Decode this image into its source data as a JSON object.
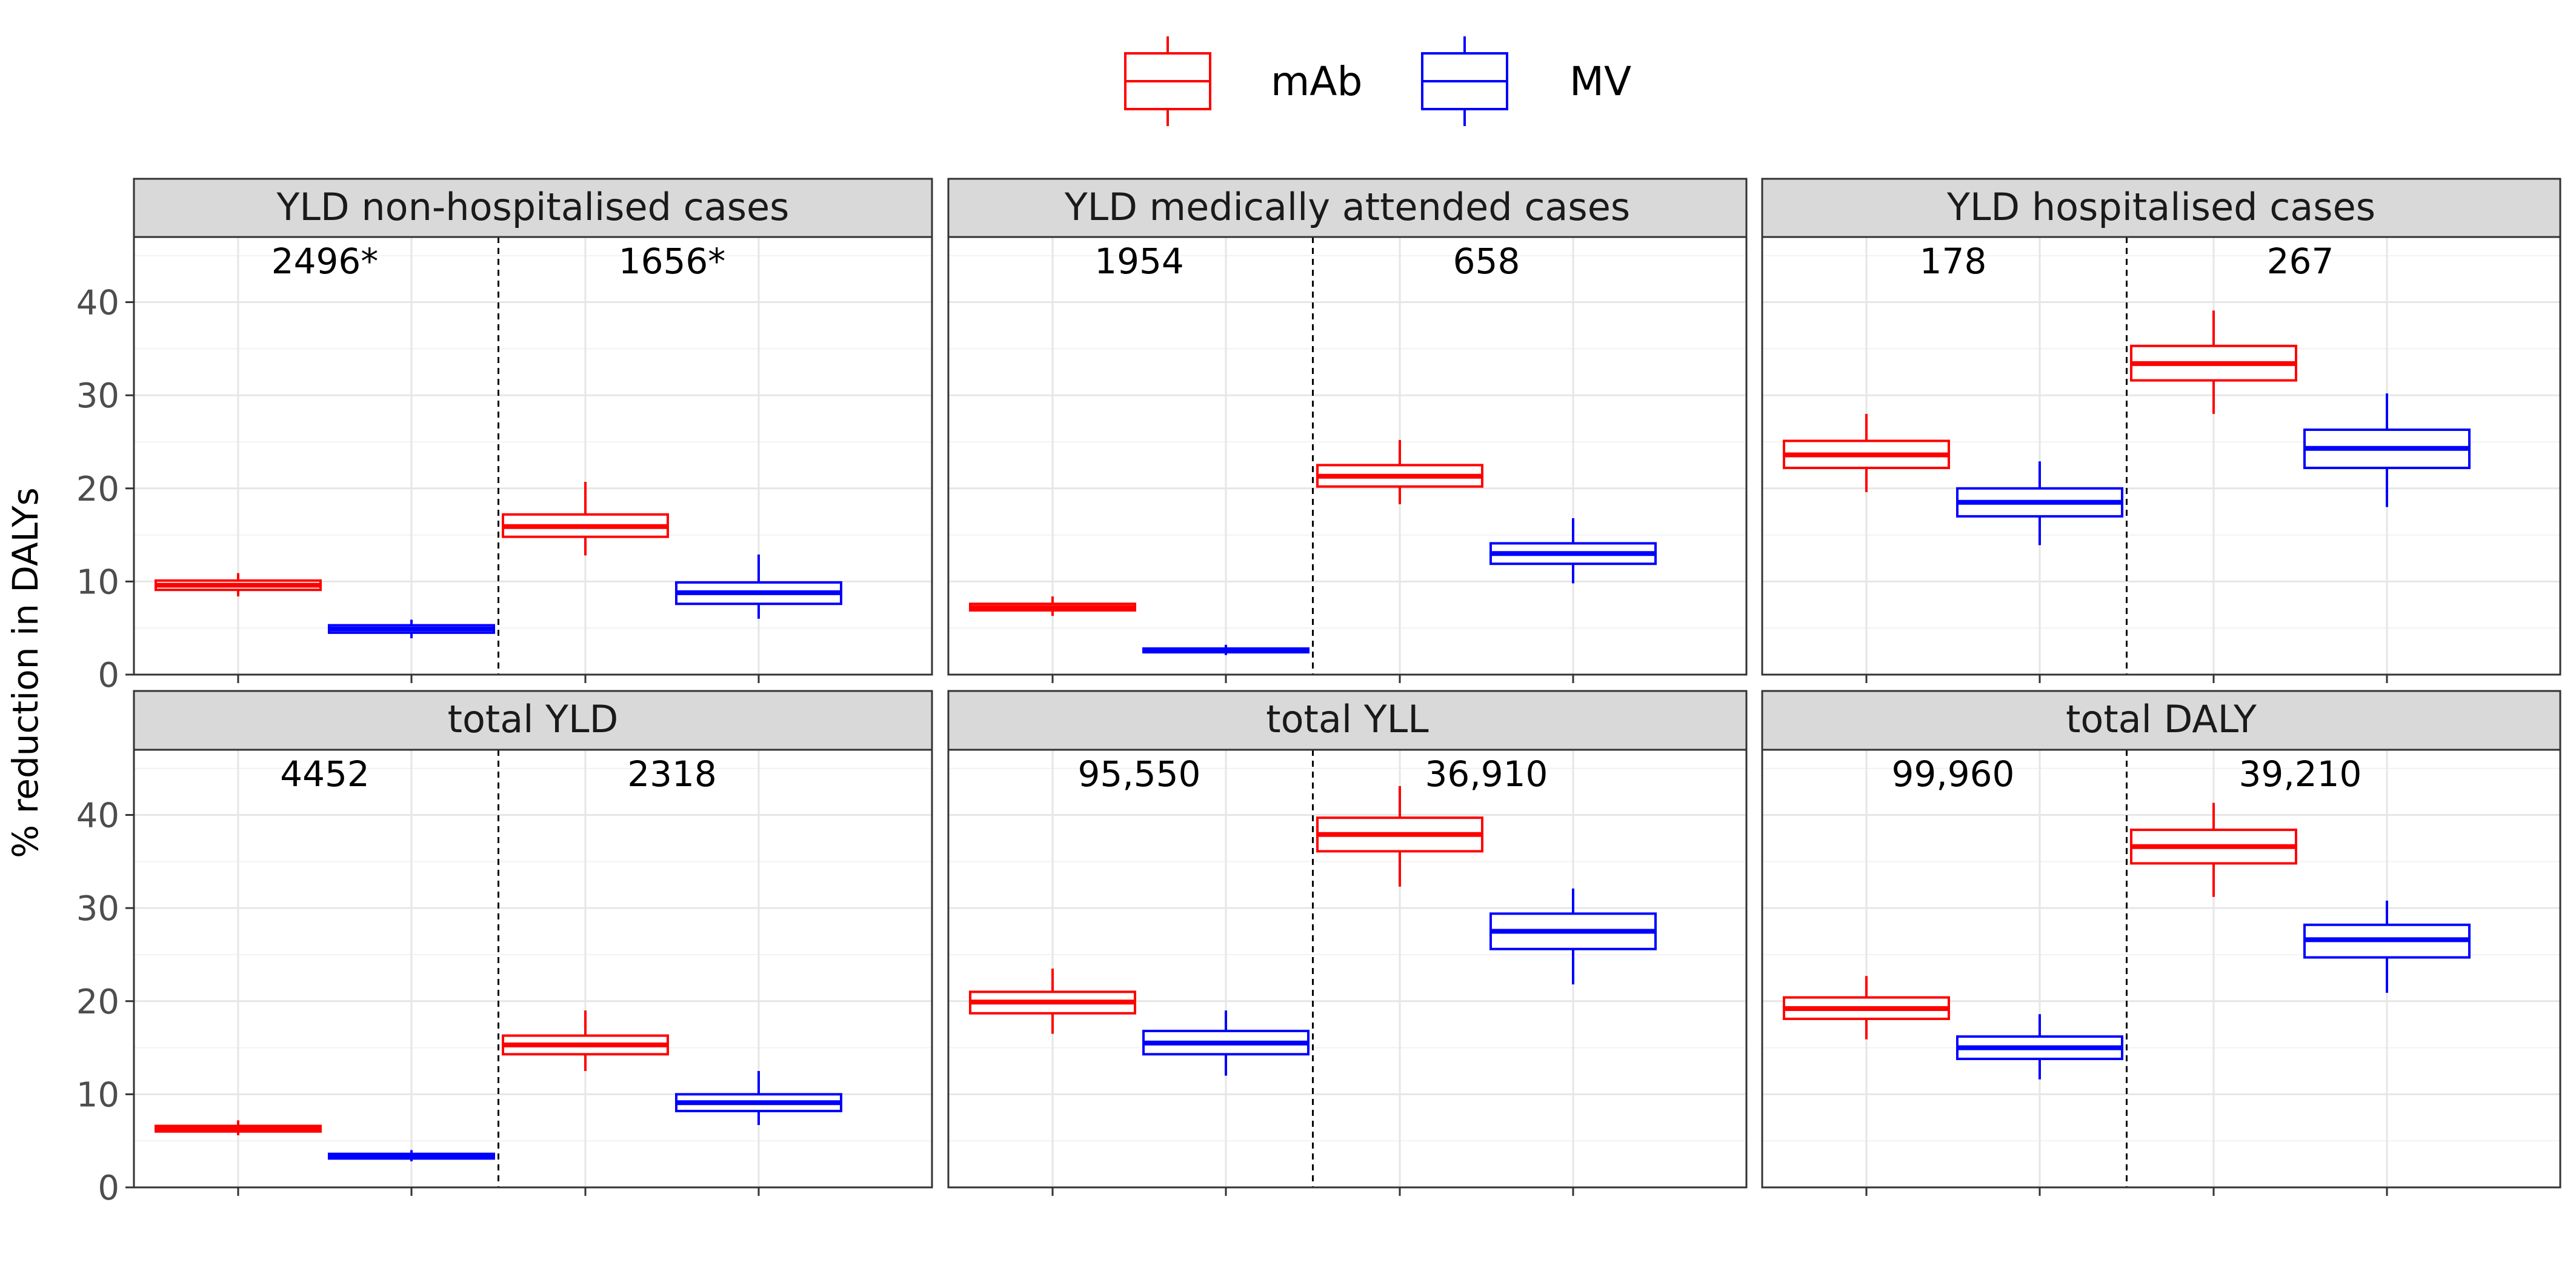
{
  "chart_data": {
    "type": "boxplot",
    "ylabel": "% reduction in DALYs",
    "ylim": [
      0,
      47
    ],
    "y_ticks": [
      0,
      10,
      20,
      30,
      40
    ],
    "grid": true,
    "legend": {
      "position": "top",
      "entries": [
        {
          "name": "mAb",
          "color": "#ff0000"
        },
        {
          "name": "MV",
          "color": "#0000ff"
        }
      ]
    },
    "panels": [
      {
        "title": "YLD non-hospitalised cases",
        "annotations": [
          "2496*",
          "1656*"
        ],
        "boxes": [
          {
            "series": "mAb",
            "group": 1,
            "min": 8.4,
            "q1": 9.1,
            "median": 9.6,
            "q3": 10.1,
            "max": 10.9
          },
          {
            "series": "MV",
            "group": 1,
            "min": 3.9,
            "q1": 4.5,
            "median": 4.9,
            "q3": 5.3,
            "max": 5.9
          },
          {
            "series": "mAb",
            "group": 2,
            "min": 12.8,
            "q1": 14.8,
            "median": 15.9,
            "q3": 17.2,
            "max": 20.7
          },
          {
            "series": "MV",
            "group": 2,
            "min": 6.0,
            "q1": 7.6,
            "median": 8.8,
            "q3": 9.9,
            "max": 12.9
          }
        ]
      },
      {
        "title": "YLD medically attended cases",
        "annotations": [
          "1954",
          "658"
        ],
        "boxes": [
          {
            "series": "mAb",
            "group": 1,
            "min": 6.3,
            "q1": 6.9,
            "median": 7.2,
            "q3": 7.6,
            "max": 8.4
          },
          {
            "series": "MV",
            "group": 1,
            "min": 2.1,
            "q1": 2.4,
            "median": 2.6,
            "q3": 2.8,
            "max": 3.2
          },
          {
            "series": "mAb",
            "group": 2,
            "min": 18.3,
            "q1": 20.2,
            "median": 21.3,
            "q3": 22.5,
            "max": 25.2
          },
          {
            "series": "MV",
            "group": 2,
            "min": 9.8,
            "q1": 11.9,
            "median": 13.0,
            "q3": 14.1,
            "max": 16.8
          }
        ]
      },
      {
        "title": "YLD hospitalised cases",
        "annotations": [
          "178",
          "267"
        ],
        "boxes": [
          {
            "series": "mAb",
            "group": 1,
            "min": 19.6,
            "q1": 22.2,
            "median": 23.6,
            "q3": 25.1,
            "max": 28.0
          },
          {
            "series": "MV",
            "group": 1,
            "min": 13.9,
            "q1": 17.0,
            "median": 18.5,
            "q3": 20.0,
            "max": 22.9
          },
          {
            "series": "mAb",
            "group": 2,
            "min": 28.0,
            "q1": 31.6,
            "median": 33.4,
            "q3": 35.3,
            "max": 39.1
          },
          {
            "series": "MV",
            "group": 2,
            "min": 18.0,
            "q1": 22.2,
            "median": 24.3,
            "q3": 26.3,
            "max": 30.2
          }
        ]
      },
      {
        "title": "total YLD",
        "annotations": [
          "4452",
          "2318"
        ],
        "boxes": [
          {
            "series": "mAb",
            "group": 1,
            "min": 5.6,
            "q1": 6.0,
            "median": 6.3,
            "q3": 6.6,
            "max": 7.2
          },
          {
            "series": "MV",
            "group": 1,
            "min": 2.8,
            "q1": 3.1,
            "median": 3.4,
            "q3": 3.6,
            "max": 4.0
          },
          {
            "series": "mAb",
            "group": 2,
            "min": 12.5,
            "q1": 14.3,
            "median": 15.3,
            "q3": 16.3,
            "max": 19.0
          },
          {
            "series": "MV",
            "group": 2,
            "min": 6.7,
            "q1": 8.2,
            "median": 9.1,
            "q3": 10.0,
            "max": 12.5
          }
        ]
      },
      {
        "title": "total YLL",
        "annotations": [
          "95,550",
          "36,910"
        ],
        "boxes": [
          {
            "series": "mAb",
            "group": 1,
            "min": 16.5,
            "q1": 18.7,
            "median": 19.9,
            "q3": 21.0,
            "max": 23.5
          },
          {
            "series": "MV",
            "group": 1,
            "min": 12.0,
            "q1": 14.3,
            "median": 15.5,
            "q3": 16.8,
            "max": 19.0
          },
          {
            "series": "mAb",
            "group": 2,
            "min": 32.3,
            "q1": 36.1,
            "median": 37.9,
            "q3": 39.7,
            "max": 43.1
          },
          {
            "series": "MV",
            "group": 2,
            "min": 21.8,
            "q1": 25.6,
            "median": 27.5,
            "q3": 29.4,
            "max": 32.1
          }
        ]
      },
      {
        "title": "total DALY",
        "annotations": [
          "99,960",
          "39,210"
        ],
        "boxes": [
          {
            "series": "mAb",
            "group": 1,
            "min": 15.9,
            "q1": 18.1,
            "median": 19.2,
            "q3": 20.4,
            "max": 22.7
          },
          {
            "series": "MV",
            "group": 1,
            "min": 11.6,
            "q1": 13.8,
            "median": 15.0,
            "q3": 16.2,
            "max": 18.6
          },
          {
            "series": "mAb",
            "group": 2,
            "min": 31.2,
            "q1": 34.8,
            "median": 36.6,
            "q3": 38.4,
            "max": 41.3
          },
          {
            "series": "MV",
            "group": 2,
            "min": 20.9,
            "q1": 24.7,
            "median": 26.6,
            "q3": 28.2,
            "max": 30.8
          }
        ]
      }
    ]
  }
}
